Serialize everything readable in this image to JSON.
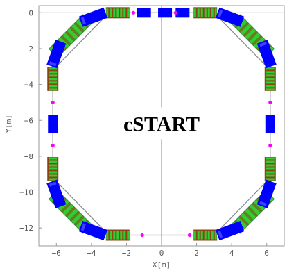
{
  "figure": {
    "title": "cSTART",
    "xlabel": "X[m]",
    "ylabel": "Y[m]"
  },
  "chart_data": {
    "type": "scatter",
    "title": "cSTART",
    "xlabel": "X[m]",
    "ylabel": "Y[m]",
    "xlim": [
      -7.0,
      7.0
    ],
    "ylim": [
      -13.0,
      0.4
    ],
    "x_ticks": [
      -6,
      -4,
      -2,
      0,
      2,
      4,
      6
    ],
    "y_ticks": [
      0,
      -2,
      -4,
      -6,
      -8,
      -10,
      -12
    ],
    "grid": false,
    "ring": {
      "straight_half_length": 3.0,
      "center_x": 0,
      "center_y": -6.2,
      "half_size": 6.2
    },
    "colors": {
      "dipole": "#0000ff",
      "quadrupole_block": "#8b4513",
      "quad_green": "#32cd32",
      "sextupole": "#ff00ff",
      "drift": "#888888",
      "axis": "#888888"
    }
  }
}
